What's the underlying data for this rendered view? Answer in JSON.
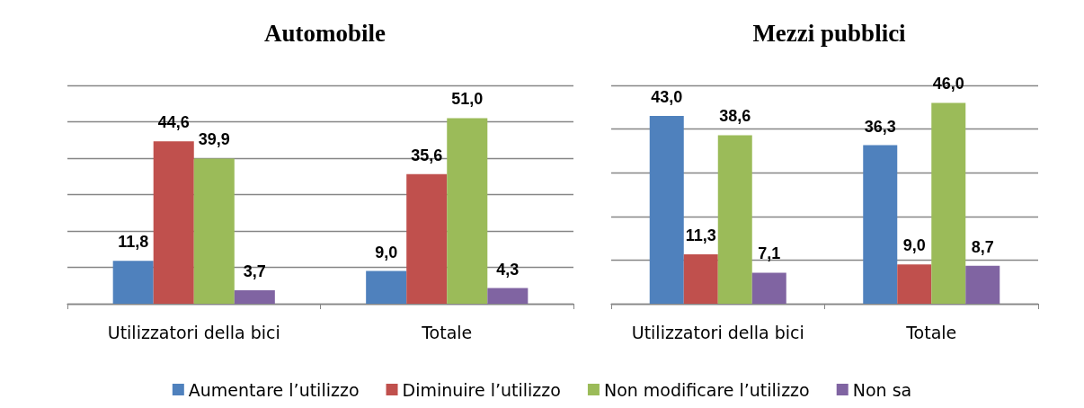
{
  "chart_data": [
    {
      "type": "bar",
      "title": "Automobile",
      "categories": [
        "Utilizzatori della bici",
        "Totale"
      ],
      "series": [
        {
          "name": "Aumentare l’utilizzo",
          "color": "#4f81bd",
          "values": [
            11.8,
            9.0
          ],
          "value_labels": [
            "11,8",
            "9,0"
          ]
        },
        {
          "name": "Diminuire l’utilizzo",
          "color": "#c0504d",
          "values": [
            44.6,
            35.6
          ],
          "value_labels": [
            "44,6",
            "35,6"
          ]
        },
        {
          "name": "Non modificare l’utilizzo",
          "color": "#9bbb59",
          "values": [
            39.9,
            51.0
          ],
          "value_labels": [
            "39,9",
            "51,0"
          ]
        },
        {
          "name": "Non sa",
          "color": "#8064a2",
          "values": [
            3.7,
            4.3
          ],
          "value_labels": [
            "3,7",
            "4,3"
          ]
        }
      ],
      "tick_labels": "x",
      "grid": "y",
      "legend": "bottom"
    },
    {
      "type": "bar",
      "title": "Mezzi pubblici",
      "categories": [
        "Utilizzatori della bici",
        "Totale"
      ],
      "series": [
        {
          "color": "#4f81bd",
          "values": [
            43.0,
            36.3
          ],
          "value_labels": [
            "43,0",
            "36,3"
          ]
        },
        {
          "color": "#c0504d",
          "values": [
            11.3,
            9.0
          ],
          "value_labels": [
            "11,3",
            "9,0"
          ]
        },
        {
          "color": "#9bbb59",
          "values": [
            38.6,
            46.0
          ],
          "value_labels": [
            "38,6",
            "46,0"
          ]
        },
        {
          "color": "#8064a2",
          "values": [
            7.1,
            8.7
          ],
          "value_labels": [
            "7,1",
            "8,7"
          ]
        }
      ],
      "tick_labels": "x",
      "grid": "y"
    }
  ]
}
